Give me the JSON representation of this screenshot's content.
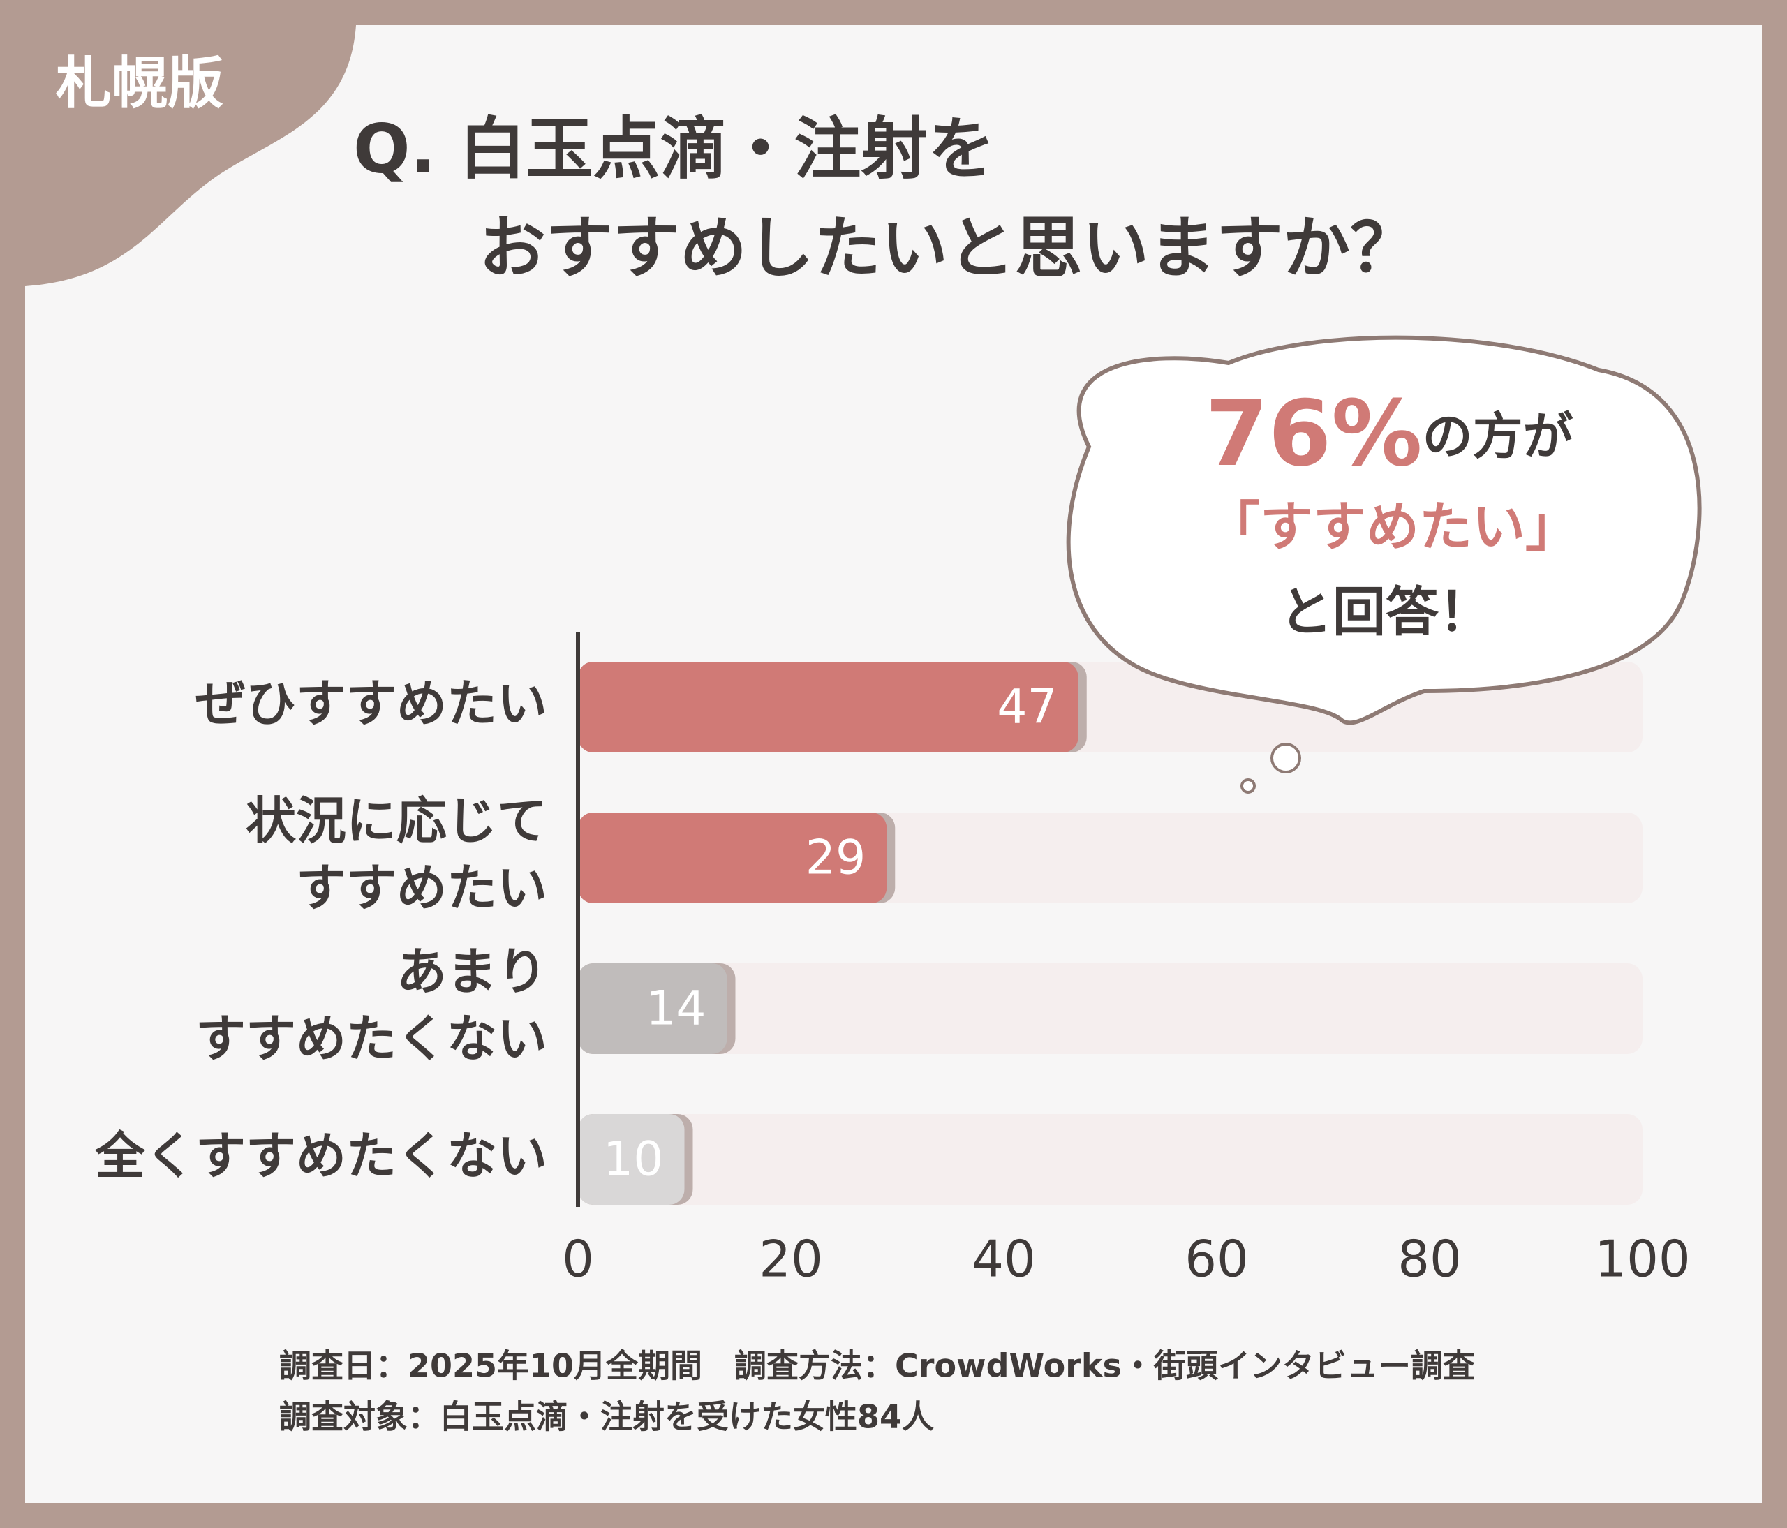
{
  "badge": "札幌版",
  "chart_data": {
    "type": "barh",
    "title_lines": [
      "Q. 白玉点滴・注射を",
      "おすすめしたいと思いますか？"
    ],
    "categories": [
      "ぜひすすめたい",
      "状況に応じて\nすすめたい",
      "あまり\nすすめたくない",
      "全くすすめたくない"
    ],
    "values": [
      47,
      29,
      14,
      10
    ],
    "colors": [
      "#d07a76",
      "#d07a76",
      "#c0bcbb",
      "#d9d7d7"
    ],
    "track_color": "#f5eeee",
    "xlim": [
      0,
      100
    ],
    "xticks": [
      0,
      20,
      40,
      60,
      80,
      100
    ],
    "annotation": {
      "highlight": "76%",
      "after": "の方が",
      "lines": [
        "「すすめたい」",
        "と回答！"
      ]
    },
    "footnotes": [
      "調査日：2025年10月全期間　調査方法：CrowdWorks・街頭インタビュー調査",
      "調査対象：白玉点滴・注射を受けた女性84人"
    ]
  }
}
